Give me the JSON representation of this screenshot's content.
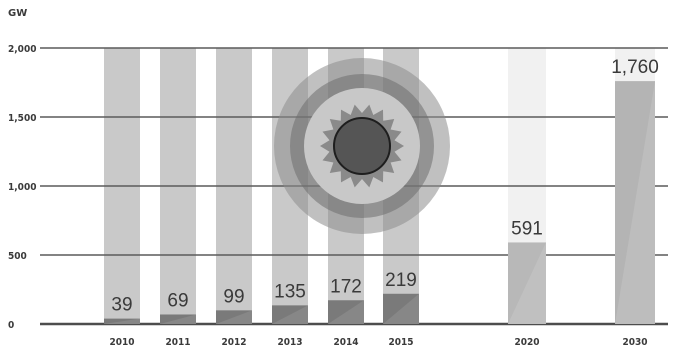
{
  "chart_data": {
    "type": "bar",
    "unit": "GW",
    "categories": [
      "2010",
      "2011",
      "2012",
      "2013",
      "2014",
      "2015",
      "2020",
      "2030"
    ],
    "values": [
      39,
      69,
      99,
      135,
      172,
      219,
      591,
      1760
    ],
    "value_labels": [
      "39",
      "69",
      "99",
      "135",
      "172",
      "219",
      "591",
      "1,760"
    ],
    "ylim": [
      0,
      2000
    ],
    "yticks": [
      0,
      500,
      1000,
      1500,
      2000
    ],
    "ytick_labels": [
      "0",
      "500",
      "1,000",
      "1,500",
      "2,000"
    ],
    "grid": true,
    "colors": {
      "background_column": "#c9c9c9",
      "background_column_light": "#f1f1f1",
      "bar_actual": "#7a7a7a",
      "bar_projected": "#b8b8b8",
      "bar_projected_2030": "#b4b4b4",
      "gridline": "#5a5a5a",
      "baseline": "#4d4d4d",
      "emblem_outer": "#8c8c8c",
      "emblem_mid": "#6e6e6e",
      "emblem_core": "#555555"
    },
    "decoration": "sun-emblem"
  }
}
